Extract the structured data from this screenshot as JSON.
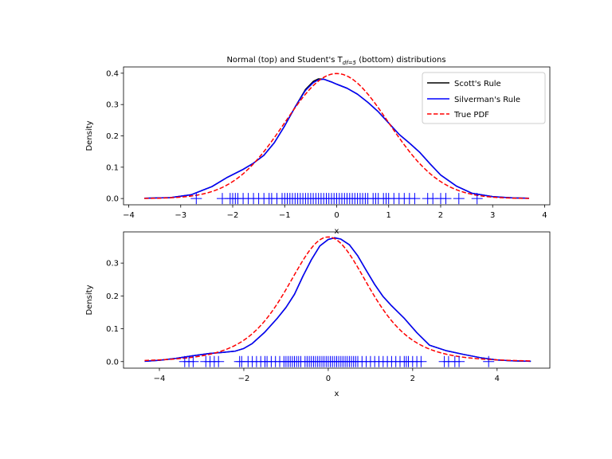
{
  "chart_data": [
    {
      "type": "line",
      "title_main": "Normal (top) and Student's T",
      "title_sub": "df=5",
      "title_end": " (bottom) distributions",
      "xlabel": "x",
      "ylabel": "Density",
      "xlim": [
        -4.1,
        4.1
      ],
      "ylim": [
        -0.02,
        0.42
      ],
      "xticks": [
        -4,
        -3,
        -2,
        -1,
        0,
        1,
        2,
        3,
        4
      ],
      "xtick_labels": [
        "−4",
        "−3",
        "−2",
        "−1",
        "0",
        "1",
        "2",
        "3",
        "4"
      ],
      "yticks": [
        0.0,
        0.1,
        0.2,
        0.3,
        0.4
      ],
      "ytick_labels": [
        "0.0",
        "0.1",
        "0.2",
        "0.3",
        "0.4"
      ],
      "legend": {
        "placement": "top-right",
        "entries": [
          {
            "label": "Scott's Rule",
            "color": "#000000",
            "style": "solid"
          },
          {
            "label": "Silverman's Rule",
            "color": "#0000ff",
            "style": "solid"
          },
          {
            "label": "True PDF",
            "color": "#ff0000",
            "style": "dashed"
          }
        ]
      },
      "series": [
        {
          "name": "Scott's Rule",
          "color": "#000000",
          "style": "solid",
          "x": [
            -3.7,
            -3.2,
            -2.8,
            -2.4,
            -2.1,
            -1.8,
            -1.6,
            -1.4,
            -1.2,
            -1.0,
            -0.8,
            -0.6,
            -0.45,
            -0.35,
            -0.25,
            -0.1,
            0.0,
            0.2,
            0.4,
            0.6,
            0.8,
            1.0,
            1.2,
            1.4,
            1.6,
            1.8,
            2.0,
            2.3,
            2.6,
            3.0,
            3.4,
            3.7
          ],
          "y": [
            0.001,
            0.003,
            0.012,
            0.038,
            0.068,
            0.093,
            0.113,
            0.138,
            0.178,
            0.232,
            0.292,
            0.348,
            0.374,
            0.382,
            0.381,
            0.372,
            0.365,
            0.352,
            0.333,
            0.307,
            0.277,
            0.241,
            0.205,
            0.177,
            0.147,
            0.11,
            0.075,
            0.04,
            0.017,
            0.006,
            0.002,
            0.001
          ]
        },
        {
          "name": "Silverman's Rule",
          "color": "#0000ff",
          "style": "solid",
          "x": [
            -3.7,
            -3.2,
            -2.8,
            -2.4,
            -2.1,
            -1.8,
            -1.6,
            -1.4,
            -1.2,
            -1.0,
            -0.8,
            -0.6,
            -0.45,
            -0.35,
            -0.25,
            -0.1,
            0.0,
            0.2,
            0.4,
            0.6,
            0.8,
            1.0,
            1.2,
            1.4,
            1.6,
            1.8,
            2.0,
            2.3,
            2.6,
            3.0,
            3.4,
            3.7
          ],
          "y": [
            0.001,
            0.003,
            0.012,
            0.038,
            0.068,
            0.093,
            0.113,
            0.138,
            0.178,
            0.232,
            0.292,
            0.345,
            0.37,
            0.379,
            0.381,
            0.372,
            0.365,
            0.352,
            0.333,
            0.307,
            0.277,
            0.241,
            0.205,
            0.177,
            0.147,
            0.11,
            0.075,
            0.04,
            0.017,
            0.006,
            0.002,
            0.001
          ]
        },
        {
          "name": "True PDF",
          "color": "#ff0000",
          "style": "dashed",
          "pdf": "normal",
          "xmin": -3.7,
          "xmax": 3.7
        }
      ],
      "rug": {
        "color": "#0000ff",
        "x": [
          -2.7,
          -2.2,
          -2.05,
          -2.0,
          -1.95,
          -1.9,
          -1.8,
          -1.7,
          -1.6,
          -1.5,
          -1.4,
          -1.3,
          -1.25,
          -1.15,
          -1.05,
          -1.0,
          -0.95,
          -0.9,
          -0.85,
          -0.8,
          -0.75,
          -0.7,
          -0.65,
          -0.6,
          -0.55,
          -0.5,
          -0.45,
          -0.4,
          -0.35,
          -0.3,
          -0.25,
          -0.2,
          -0.15,
          -0.1,
          -0.05,
          0.0,
          0.05,
          0.1,
          0.15,
          0.2,
          0.25,
          0.3,
          0.35,
          0.4,
          0.45,
          0.5,
          0.55,
          0.6,
          0.7,
          0.75,
          0.8,
          0.9,
          0.95,
          1.0,
          1.1,
          1.2,
          1.3,
          1.4,
          1.5,
          1.75,
          1.85,
          2.0,
          2.1,
          2.35,
          2.7
        ]
      }
    },
    {
      "type": "line",
      "xlabel": "x",
      "ylabel": "Density",
      "xlim": [
        -4.85,
        5.25
      ],
      "ylim": [
        -0.02,
        0.395
      ],
      "xticks": [
        -4,
        -2,
        0,
        2,
        4
      ],
      "xtick_labels": [
        "−4",
        "−2",
        "0",
        "2",
        "4"
      ],
      "yticks": [
        0.0,
        0.1,
        0.2,
        0.3
      ],
      "ytick_labels": [
        "0.0",
        "0.1",
        "0.2",
        "0.3"
      ],
      "series": [
        {
          "name": "Scott's Rule",
          "color": "#000000",
          "style": "solid",
          "x": [
            -4.35,
            -4.0,
            -3.6,
            -3.2,
            -2.8,
            -2.5,
            -2.2,
            -2.0,
            -1.8,
            -1.5,
            -1.2,
            -1.0,
            -0.8,
            -0.6,
            -0.4,
            -0.2,
            0.0,
            0.15,
            0.3,
            0.5,
            0.7,
            0.9,
            1.1,
            1.3,
            1.5,
            1.8,
            2.1,
            2.4,
            2.8,
            3.2,
            3.6,
            4.0,
            4.4,
            4.8
          ],
          "y": [
            0.001,
            0.004,
            0.01,
            0.018,
            0.025,
            0.028,
            0.032,
            0.04,
            0.055,
            0.09,
            0.133,
            0.165,
            0.205,
            0.26,
            0.31,
            0.352,
            0.372,
            0.377,
            0.373,
            0.356,
            0.322,
            0.278,
            0.235,
            0.198,
            0.17,
            0.132,
            0.088,
            0.05,
            0.033,
            0.022,
            0.012,
            0.005,
            0.002,
            0.001
          ]
        },
        {
          "name": "Silverman's Rule",
          "color": "#0000ff",
          "style": "solid",
          "x": [
            -4.35,
            -4.0,
            -3.6,
            -3.2,
            -2.8,
            -2.5,
            -2.2,
            -2.0,
            -1.8,
            -1.5,
            -1.2,
            -1.0,
            -0.8,
            -0.6,
            -0.4,
            -0.2,
            0.0,
            0.15,
            0.3,
            0.5,
            0.7,
            0.9,
            1.1,
            1.3,
            1.5,
            1.8,
            2.1,
            2.4,
            2.8,
            3.2,
            3.6,
            4.0,
            4.4,
            4.8
          ],
          "y": [
            0.001,
            0.004,
            0.01,
            0.018,
            0.025,
            0.028,
            0.032,
            0.04,
            0.055,
            0.09,
            0.133,
            0.165,
            0.205,
            0.26,
            0.31,
            0.352,
            0.372,
            0.377,
            0.373,
            0.356,
            0.322,
            0.278,
            0.235,
            0.198,
            0.17,
            0.132,
            0.088,
            0.05,
            0.033,
            0.022,
            0.012,
            0.005,
            0.002,
            0.001
          ]
        },
        {
          "name": "True PDF",
          "color": "#ff0000",
          "style": "dashed",
          "pdf": "t5",
          "xmin": -4.35,
          "xmax": 4.8
        }
      ],
      "rug": {
        "color": "#0000ff",
        "x": [
          -3.4,
          -3.3,
          -3.2,
          -2.9,
          -2.8,
          -2.7,
          -2.6,
          -2.1,
          -2.05,
          -1.9,
          -1.8,
          -1.7,
          -1.6,
          -1.5,
          -1.45,
          -1.35,
          -1.25,
          -1.15,
          -1.05,
          -1.0,
          -0.95,
          -0.9,
          -0.85,
          -0.8,
          -0.75,
          -0.7,
          -0.65,
          -0.55,
          -0.5,
          -0.45,
          -0.4,
          -0.35,
          -0.3,
          -0.25,
          -0.2,
          -0.15,
          -0.1,
          -0.05,
          0.0,
          0.05,
          0.1,
          0.15,
          0.2,
          0.25,
          0.3,
          0.35,
          0.4,
          0.45,
          0.5,
          0.55,
          0.6,
          0.65,
          0.7,
          0.8,
          0.9,
          1.0,
          1.1,
          1.2,
          1.3,
          1.4,
          1.5,
          1.6,
          1.7,
          1.8,
          1.85,
          1.9,
          2.0,
          2.1,
          2.2,
          2.75,
          2.85,
          3.0,
          3.1,
          3.8
        ]
      }
    }
  ]
}
